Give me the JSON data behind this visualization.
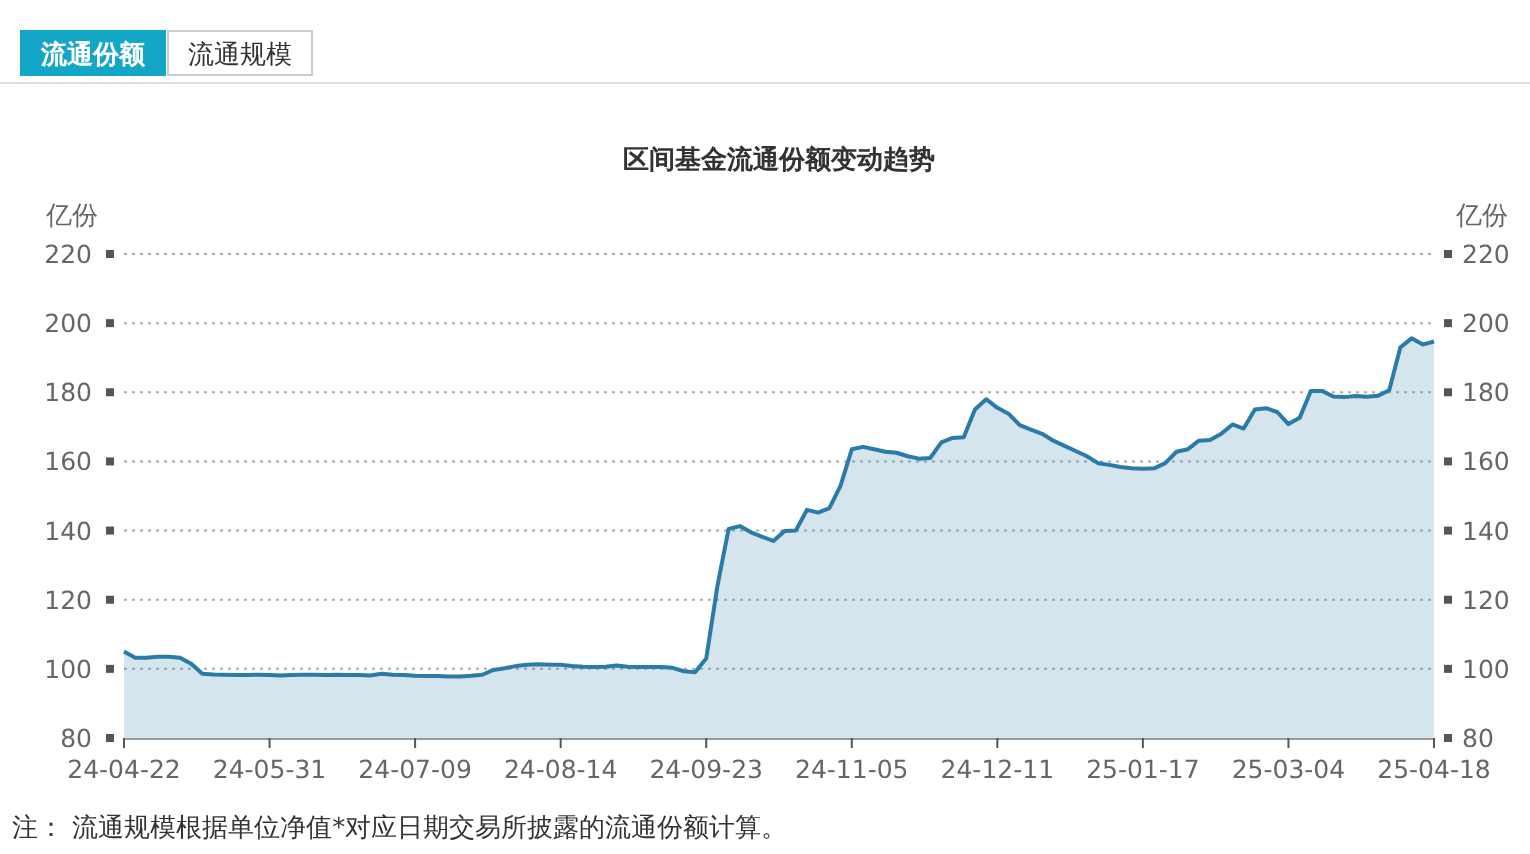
{
  "chart_data": {
    "type": "area",
    "title": "区间基金流通份额变动趋势",
    "ylabel": "亿份",
    "y2label": "亿份",
    "annotations": [
      "流通份额",
      "流通规模",
      "注：  流通规模根据单位净值*对应日期交易所披露的流通份额计算。"
    ],
    "categories": [
      "24-04-22",
      null,
      null,
      null,
      null,
      null,
      null,
      null,
      null,
      null,
      null,
      null,
      null,
      "24-05-31",
      null,
      null,
      null,
      null,
      null,
      null,
      null,
      null,
      null,
      null,
      null,
      null,
      "24-07-09",
      null,
      null,
      null,
      null,
      null,
      null,
      null,
      null,
      null,
      null,
      null,
      null,
      "24-08-14",
      null,
      null,
      null,
      null,
      null,
      null,
      null,
      null,
      null,
      null,
      null,
      null,
      "24-09-23",
      null,
      null,
      null,
      null,
      null,
      null,
      null,
      null,
      null,
      null,
      null,
      null,
      "24-11-05",
      null,
      null,
      null,
      null,
      null,
      null,
      null,
      null,
      null,
      null,
      null,
      null,
      "24-12-11",
      null,
      null,
      null,
      null,
      null,
      null,
      null,
      null,
      null,
      null,
      null,
      null,
      "25-01-17",
      null,
      null,
      null,
      null,
      null,
      null,
      null,
      null,
      null,
      null,
      null,
      null,
      "25-03-04",
      null,
      null,
      null,
      null,
      null,
      null,
      null,
      null,
      null,
      null,
      null,
      null,
      "25-04-18"
    ],
    "series": [
      {
        "color": "#2a7ba8",
        "values": [
          105,
          103.2,
          103.2,
          103.5,
          103.5,
          103.2,
          101.5,
          98.6,
          98.4,
          98.3,
          98.2,
          98.2,
          98.3,
          98.2,
          98.1,
          98.2,
          98.3,
          98.3,
          98.2,
          98.3,
          98.2,
          98.2,
          98.1,
          98.6,
          98.3,
          98.2,
          98,
          97.9,
          97.9,
          97.8,
          97.8,
          98,
          98.3,
          99.7,
          100.2,
          100.8,
          101.2,
          101.3,
          101.2,
          101.2,
          100.8,
          100.6,
          100.5,
          100.6,
          101,
          100.6,
          100.5,
          100.5,
          100.5,
          100.3,
          99.3,
          99,
          103,
          124,
          140.5,
          141.3,
          139.5,
          138.2,
          137,
          139.9,
          140,
          146,
          145.2,
          146.5,
          153,
          163.5,
          164.2,
          163.5,
          162.8,
          162.5,
          161.5,
          160.8,
          161,
          165.5,
          166.8,
          167,
          175,
          178,
          175.5,
          173.8,
          170.5,
          169.2,
          168,
          166,
          164.5,
          163,
          161.5,
          159.5,
          159,
          158.4,
          158,
          157.9,
          158,
          159.5,
          162.8,
          163.5,
          166,
          166.2,
          168,
          170.7,
          169.5,
          175,
          175.4,
          174.3,
          170.8,
          172.6,
          180.4,
          180.4,
          178.8,
          178.6,
          178.9,
          178.7,
          179,
          180.6,
          193,
          195.6,
          193.8,
          194.7
        ]
      }
    ],
    "ylim": [
      80,
      220
    ],
    "yticks": [
      80,
      100,
      120,
      140,
      160,
      180,
      200,
      220
    ],
    "y2lim": [
      80,
      220
    ],
    "y2ticks": [
      80,
      100,
      120,
      140,
      160,
      180,
      200,
      220
    ],
    "grid": "y"
  }
}
